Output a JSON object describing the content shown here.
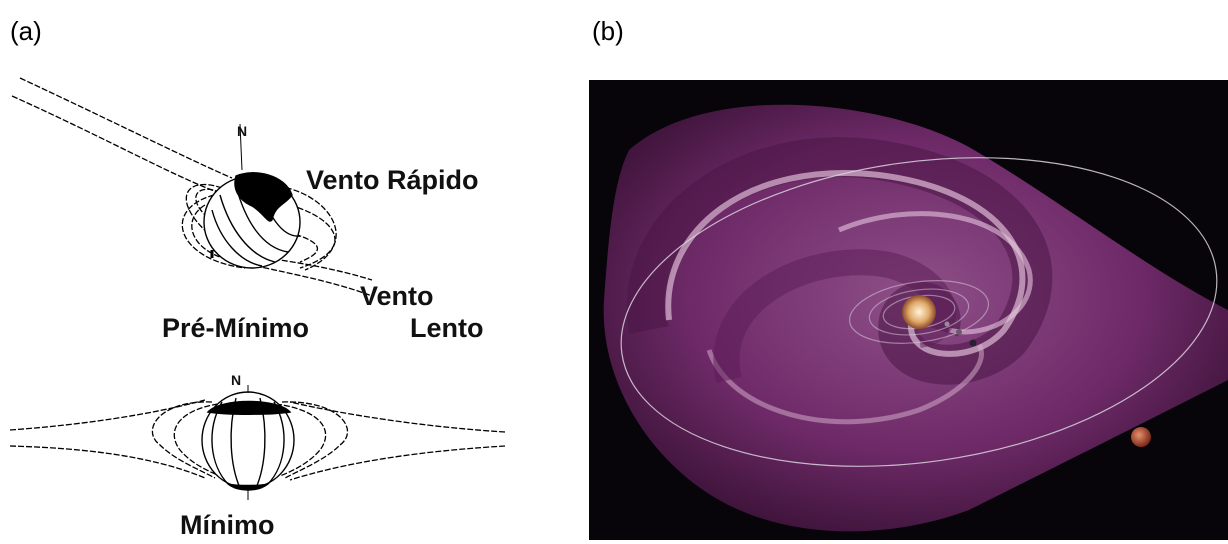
{
  "panel_a": {
    "label": "(a)",
    "north_label_top": "N",
    "north_label_bottom": "N",
    "fast_wind": "Vento Rápido",
    "slow_wind_line1": "Vento",
    "slow_wind_line2": "Lento",
    "pre_minimum": "Pré-Mínimo",
    "minimum": "Mínimo"
  },
  "panel_b": {
    "label": "(b)"
  },
  "colors": {
    "space": "#07040a",
    "sheet_base": "#6e2a68",
    "sheet_highlight": "#e6c6df",
    "sun": "#e0a86a",
    "planet": "#b9532f",
    "orbit": "#dcd4e0"
  }
}
